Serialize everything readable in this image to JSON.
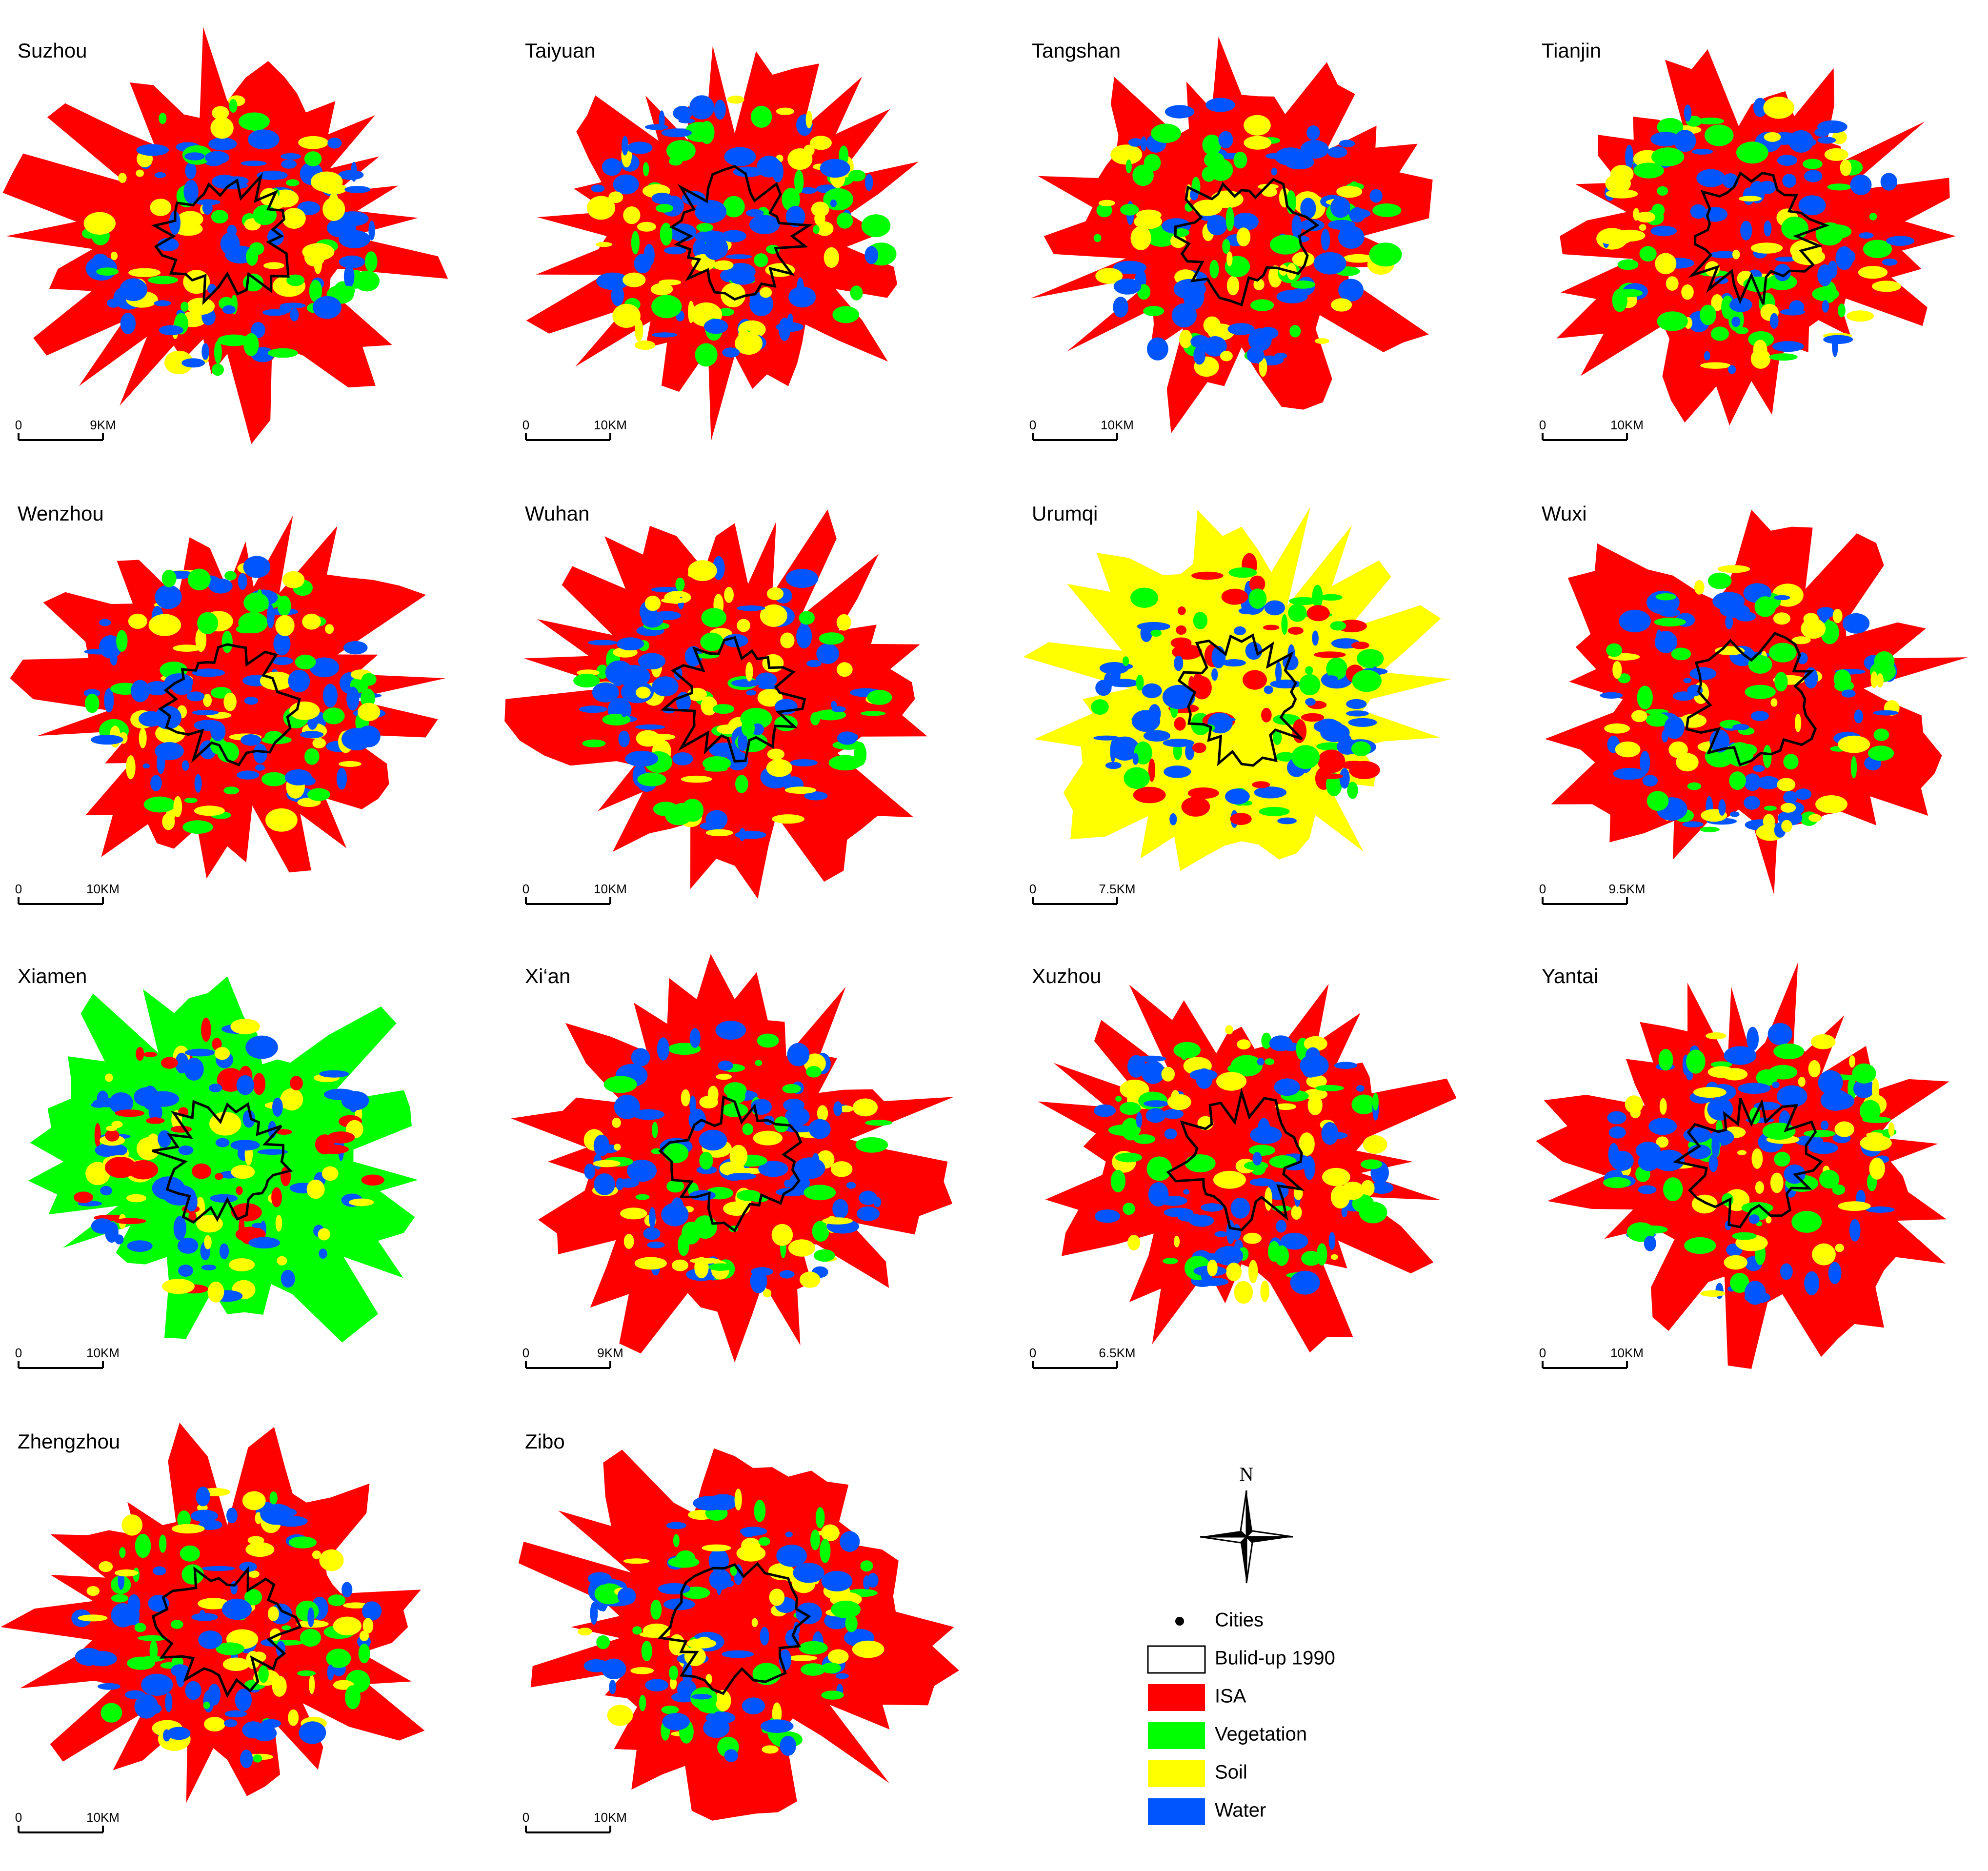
{
  "panels": [
    {
      "name": "Suzhou",
      "scale_start": "0",
      "scale_end": "9KM"
    },
    {
      "name": "Taiyuan",
      "scale_start": "0",
      "scale_end": "10KM"
    },
    {
      "name": "Tangshan",
      "scale_start": "0",
      "scale_end": "10KM"
    },
    {
      "name": "Tianjin",
      "scale_start": "0",
      "scale_end": "10KM"
    },
    {
      "name": "Wenzhou",
      "scale_start": "0",
      "scale_end": "10KM"
    },
    {
      "name": "Wuhan",
      "scale_start": "0",
      "scale_end": "10KM"
    },
    {
      "name": "Urumqi",
      "scale_start": "0",
      "scale_end": "7.5KM"
    },
    {
      "name": "Wuxi",
      "scale_start": "0",
      "scale_end": "9.5KM"
    },
    {
      "name": "Xiamen",
      "scale_start": "0",
      "scale_end": "10KM"
    },
    {
      "name": "Xi‘an",
      "scale_start": "0",
      "scale_end": "9KM"
    },
    {
      "name": "Xuzhou",
      "scale_start": "0",
      "scale_end": "6.5KM"
    },
    {
      "name": "Yantai",
      "scale_start": "0",
      "scale_end": "10KM"
    },
    {
      "name": "Zhengzhou",
      "scale_start": "0",
      "scale_end": "10KM"
    },
    {
      "name": "Zibo",
      "scale_start": "0",
      "scale_end": "10KM"
    }
  ],
  "north": "N",
  "legend": [
    {
      "label": "Cities",
      "color": "#000000"
    },
    {
      "label": "Bulid-up 1990",
      "color": "#ffffff"
    },
    {
      "label": "ISA",
      "color": "#ff0000"
    },
    {
      "label": "Vegetation",
      "color": "#00ff00"
    },
    {
      "label": "Soil",
      "color": "#ffff00"
    },
    {
      "label": "Water",
      "color": "#0055ff"
    }
  ]
}
